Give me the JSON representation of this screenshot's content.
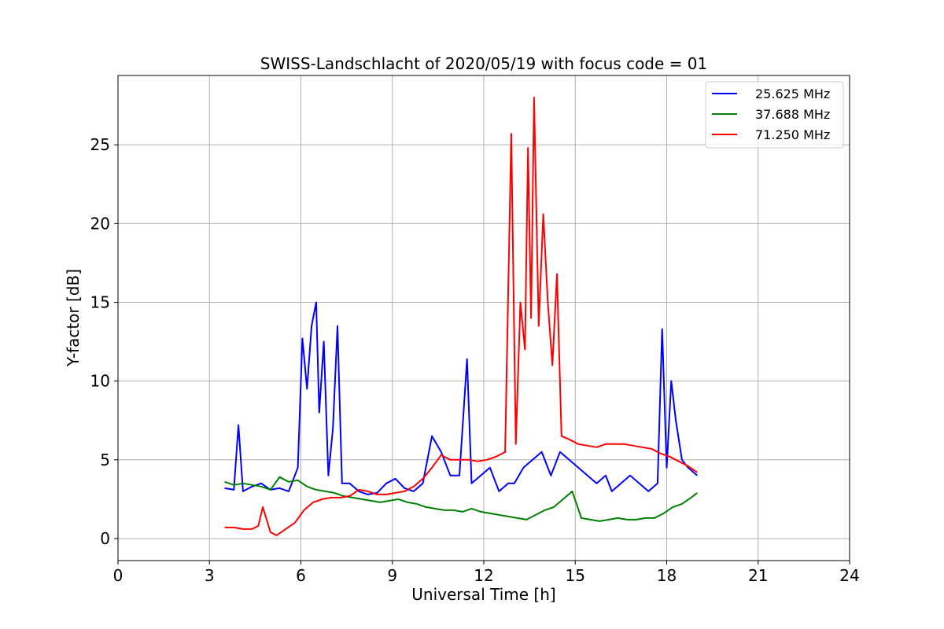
{
  "chart_data": {
    "type": "line",
    "title": "SWISS-Landschlacht of 2020/05/19 with focus code = 01",
    "xlabel": "Universal Time [h]",
    "ylabel": "Y-factor [dB]",
    "xlim": [
      0,
      24
    ],
    "ylim": [
      -1.4,
      29.4
    ],
    "xticks": [
      0,
      3,
      6,
      9,
      12,
      15,
      18,
      21,
      24
    ],
    "yticks": [
      0,
      5,
      10,
      15,
      20,
      25
    ],
    "grid": true,
    "legend_position": "top-right",
    "series": [
      {
        "name": "25.625 MHz",
        "color": "#0000ff",
        "x": [
          3.5,
          3.8,
          3.95,
          4.1,
          4.4,
          4.7,
          5.0,
          5.3,
          5.6,
          5.9,
          6.05,
          6.2,
          6.35,
          6.5,
          6.6,
          6.75,
          6.9,
          7.05,
          7.2,
          7.35,
          7.6,
          7.9,
          8.2,
          8.5,
          8.8,
          9.1,
          9.4,
          9.7,
          10.0,
          10.3,
          10.6,
          10.9,
          11.2,
          11.45,
          11.6,
          11.9,
          12.2,
          12.5,
          12.8,
          13.0,
          13.3,
          13.6,
          13.9,
          14.2,
          14.5,
          14.8,
          15.1,
          15.4,
          15.7,
          16.0,
          16.2,
          16.5,
          16.8,
          17.1,
          17.4,
          17.7,
          17.85,
          18.0,
          18.15,
          18.3,
          18.5,
          18.7,
          19.0
        ],
        "y": [
          3.2,
          3.1,
          7.2,
          3.0,
          3.3,
          3.5,
          3.1,
          3.2,
          3.0,
          4.5,
          12.7,
          9.5,
          13.5,
          15.0,
          8.0,
          12.5,
          4.0,
          7.0,
          13.5,
          3.5,
          3.5,
          3.0,
          2.8,
          2.9,
          3.5,
          3.8,
          3.2,
          3.0,
          3.5,
          6.5,
          5.5,
          4.0,
          4.0,
          11.4,
          3.5,
          4.0,
          4.5,
          3.0,
          3.5,
          3.5,
          4.5,
          5.0,
          5.5,
          4.0,
          5.5,
          5.0,
          4.5,
          4.0,
          3.5,
          4.0,
          3.0,
          3.5,
          4.0,
          3.5,
          3.0,
          3.5,
          13.3,
          4.5,
          10.0,
          7.5,
          5.0,
          4.5,
          4.0
        ]
      },
      {
        "name": "37.688 MHz",
        "color": "#008000",
        "x": [
          3.5,
          3.8,
          4.1,
          4.4,
          4.7,
          5.0,
          5.3,
          5.6,
          5.9,
          6.2,
          6.5,
          6.8,
          7.1,
          7.4,
          7.7,
          8.0,
          8.3,
          8.6,
          8.9,
          9.2,
          9.5,
          9.8,
          10.1,
          10.4,
          10.7,
          11.0,
          11.3,
          11.6,
          11.9,
          12.2,
          12.5,
          12.8,
          13.1,
          13.4,
          13.7,
          14.0,
          14.3,
          14.6,
          14.9,
          15.2,
          15.5,
          15.8,
          16.1,
          16.4,
          16.7,
          17.0,
          17.3,
          17.6,
          17.9,
          18.2,
          18.5,
          18.8,
          19.0
        ],
        "y": [
          3.6,
          3.4,
          3.5,
          3.4,
          3.3,
          3.1,
          3.9,
          3.6,
          3.7,
          3.3,
          3.1,
          3.0,
          2.9,
          2.7,
          2.6,
          2.5,
          2.4,
          2.3,
          2.4,
          2.5,
          2.3,
          2.2,
          2.0,
          1.9,
          1.8,
          1.8,
          1.7,
          1.9,
          1.7,
          1.6,
          1.5,
          1.4,
          1.3,
          1.2,
          1.5,
          1.8,
          2.0,
          2.5,
          3.0,
          1.3,
          1.2,
          1.1,
          1.2,
          1.3,
          1.2,
          1.2,
          1.3,
          1.3,
          1.6,
          2.0,
          2.2,
          2.6,
          2.9
        ]
      },
      {
        "name": "71.250 MHz",
        "color": "#ff0000",
        "x": [
          3.5,
          3.8,
          4.1,
          4.4,
          4.6,
          4.75,
          5.0,
          5.2,
          5.5,
          5.8,
          6.1,
          6.4,
          6.7,
          7.0,
          7.3,
          7.6,
          7.9,
          8.2,
          8.5,
          8.8,
          9.1,
          9.4,
          9.7,
          10.0,
          10.3,
          10.6,
          10.9,
          11.2,
          11.5,
          11.8,
          12.1,
          12.4,
          12.7,
          12.9,
          13.05,
          13.2,
          13.35,
          13.45,
          13.55,
          13.65,
          13.8,
          13.95,
          14.1,
          14.25,
          14.4,
          14.55,
          14.8,
          15.1,
          15.4,
          15.7,
          16.0,
          16.3,
          16.6,
          16.9,
          17.2,
          17.5,
          17.8,
          18.1,
          18.4,
          18.7,
          19.0
        ],
        "y": [
          0.7,
          0.7,
          0.6,
          0.6,
          0.8,
          2.0,
          0.4,
          0.2,
          0.6,
          1.0,
          1.8,
          2.3,
          2.5,
          2.6,
          2.6,
          2.7,
          3.1,
          3.0,
          2.8,
          2.8,
          2.9,
          3.0,
          3.3,
          3.8,
          4.5,
          5.3,
          5.0,
          5.0,
          5.0,
          4.9,
          5.0,
          5.2,
          5.5,
          25.7,
          6.0,
          15.0,
          12.0,
          24.8,
          14.0,
          28.0,
          13.5,
          20.6,
          15.0,
          11.0,
          16.8,
          6.5,
          6.3,
          6.0,
          5.9,
          5.8,
          6.0,
          6.0,
          6.0,
          5.9,
          5.8,
          5.7,
          5.4,
          5.2,
          4.9,
          4.6,
          4.2
        ]
      }
    ]
  }
}
